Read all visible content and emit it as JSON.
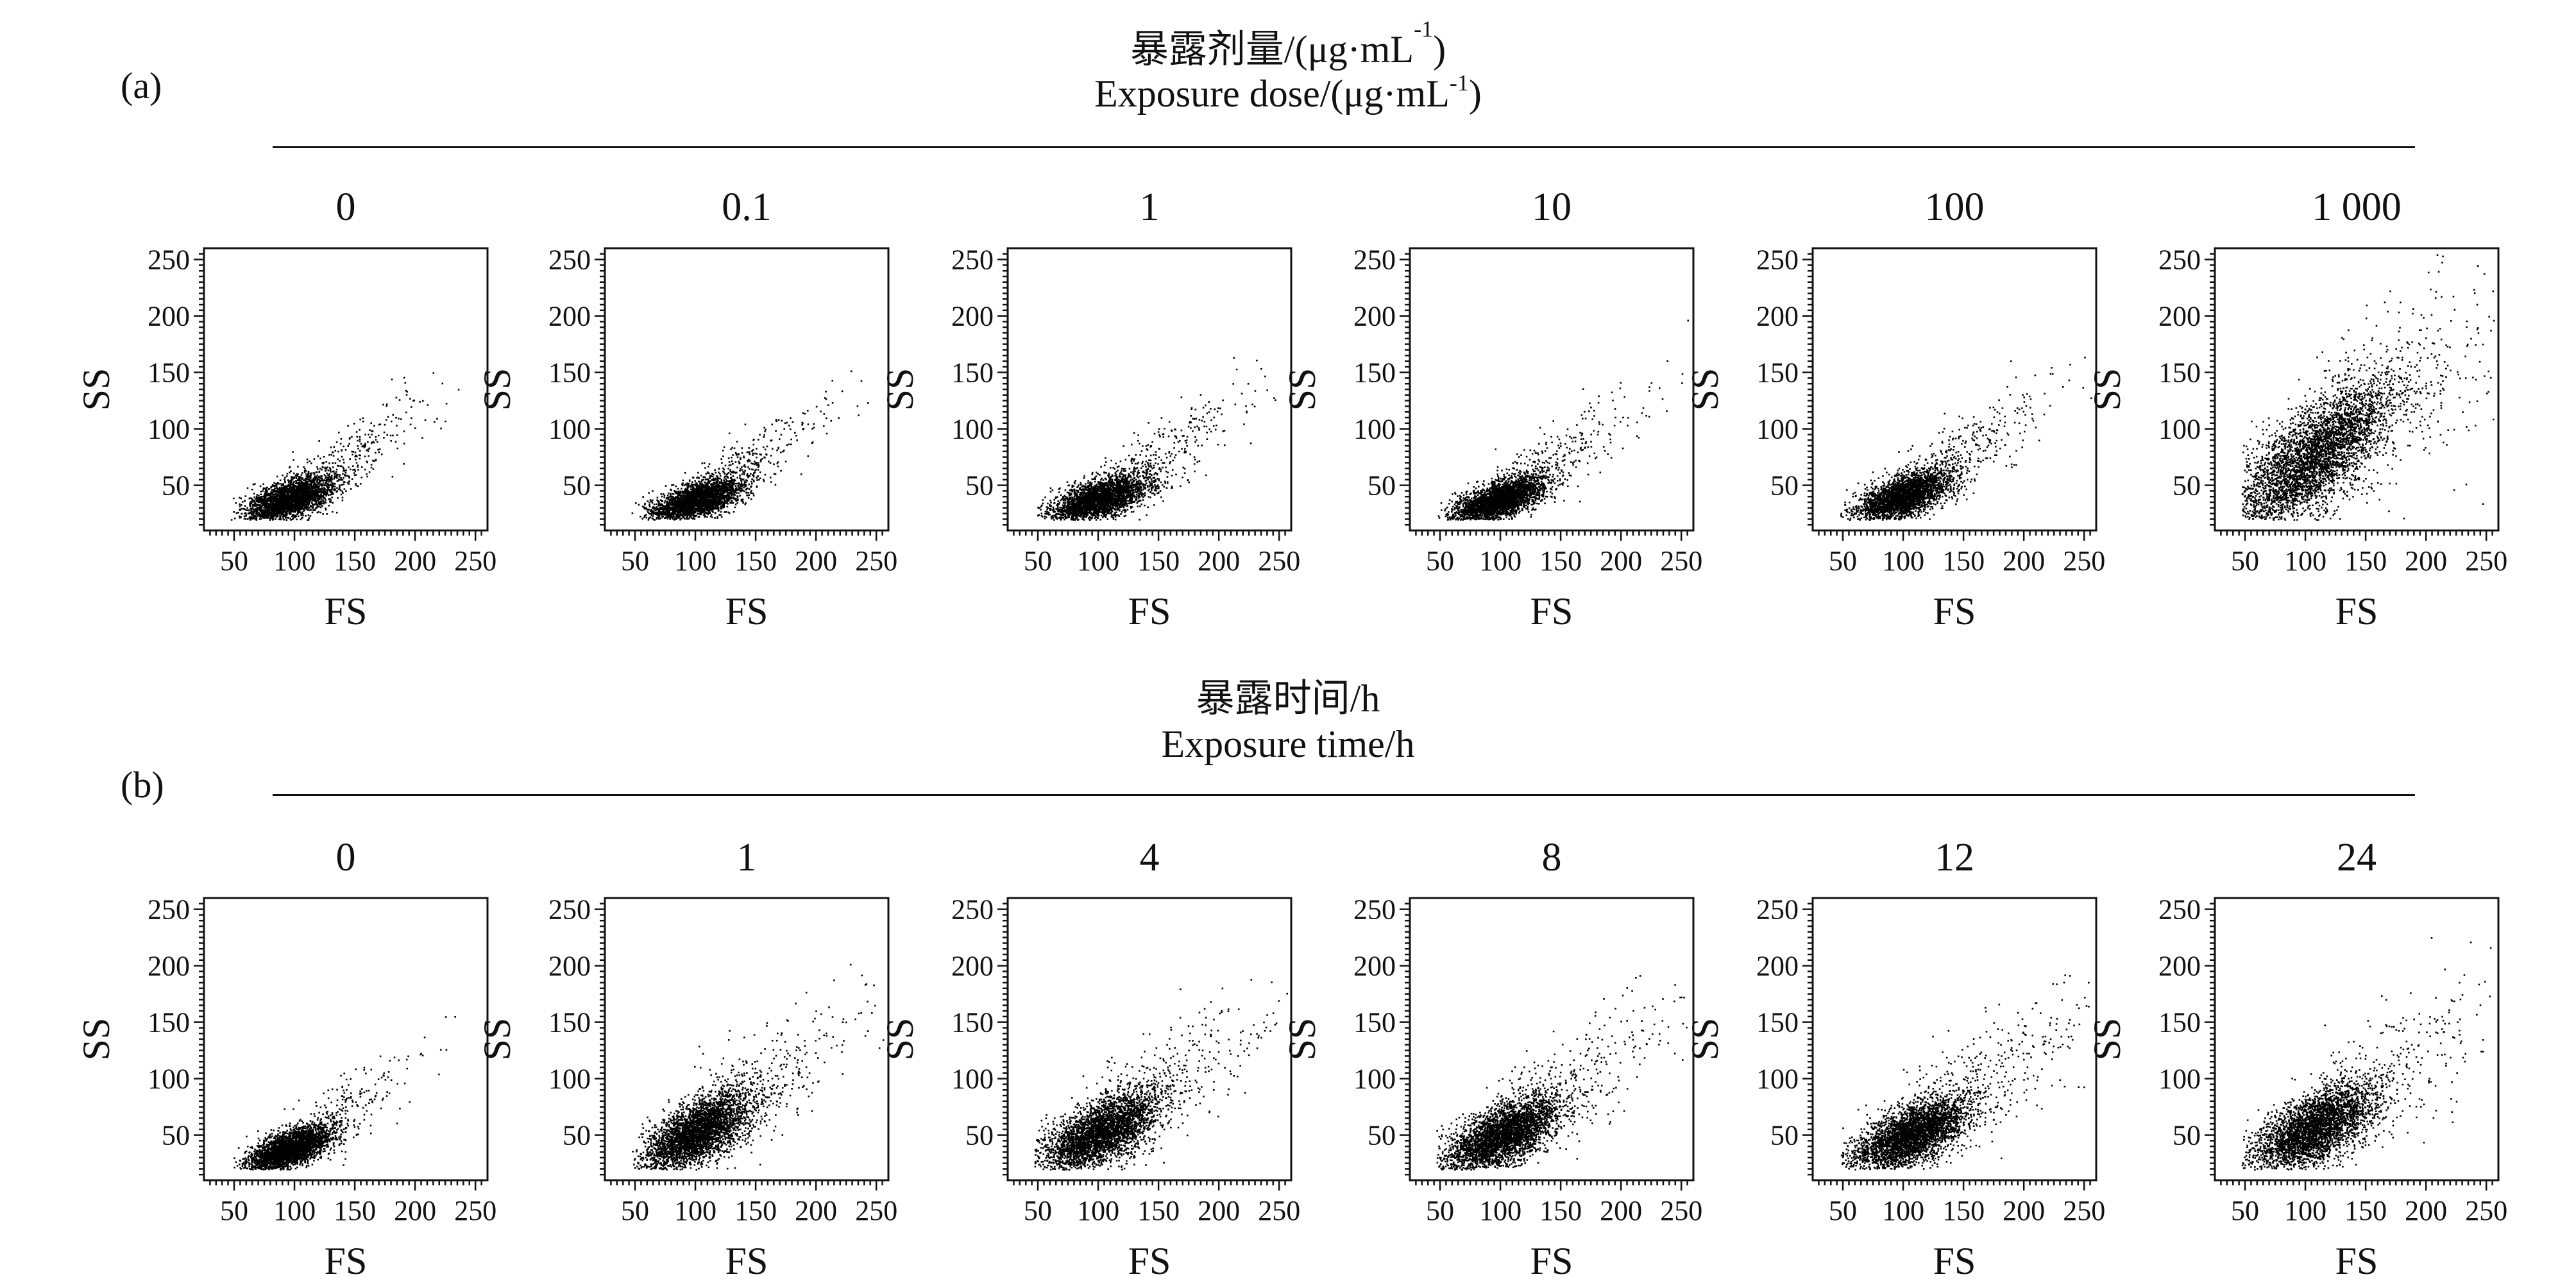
{
  "rowA": {
    "letter": "(a)",
    "title_cn_main": "暴露剂量/(μg·mL",
    "title_cn_sup": "-1",
    "title_cn_end": ")",
    "title_en_main": "Exposure dose/(μg·mL",
    "title_en_sup": "-1",
    "title_en_end": ")",
    "conditions": [
      "0",
      "0.1",
      "1",
      "10",
      "100",
      "1 000"
    ]
  },
  "rowB": {
    "letter": "(b)",
    "title_cn": "暴露时间/h",
    "title_en": "Exposure time/h",
    "conditions": [
      "0",
      "1",
      "4",
      "8",
      "12",
      "24"
    ]
  },
  "chart_data": [
    {
      "type": "scatter",
      "panel": "a-0",
      "xlabel": "FS",
      "ylabel": "SS",
      "xlim": [
        25,
        260
      ],
      "ylim": [
        10,
        260
      ],
      "xticks": [
        50,
        100,
        150,
        200,
        250
      ],
      "yticks": [
        50,
        100,
        150,
        200,
        250
      ],
      "cluster": {
        "center": [
          95,
          38
        ],
        "spread": [
          18,
          10
        ],
        "corr": 0.6,
        "n": 3200,
        "tail": 0.12
      }
    },
    {
      "type": "scatter",
      "panel": "a-0.1",
      "xlabel": "FS",
      "ylabel": "SS",
      "xlim": [
        25,
        260
      ],
      "ylim": [
        10,
        260
      ],
      "xticks": [
        50,
        100,
        150,
        200,
        250
      ],
      "yticks": [
        50,
        100,
        150,
        200,
        250
      ],
      "cluster": {
        "center": [
          100,
          37
        ],
        "spread": [
          18,
          9
        ],
        "corr": 0.6,
        "n": 3200,
        "tail": 0.12
      }
    },
    {
      "type": "scatter",
      "panel": "a-1",
      "xlabel": "FS",
      "ylabel": "SS",
      "xlim": [
        25,
        260
      ],
      "ylim": [
        10,
        260
      ],
      "xticks": [
        50,
        100,
        150,
        200,
        250
      ],
      "yticks": [
        50,
        100,
        150,
        200,
        250
      ],
      "cluster": {
        "center": [
          100,
          38
        ],
        "spread": [
          20,
          10
        ],
        "corr": 0.6,
        "n": 3200,
        "tail": 0.12
      }
    },
    {
      "type": "scatter",
      "panel": "a-10",
      "xlabel": "FS",
      "ylabel": "SS",
      "xlim": [
        25,
        260
      ],
      "ylim": [
        10,
        260
      ],
      "xticks": [
        50,
        100,
        150,
        200,
        250
      ],
      "yticks": [
        50,
        100,
        150,
        200,
        250
      ],
      "cluster": {
        "center": [
          97,
          37
        ],
        "spread": [
          18,
          10
        ],
        "corr": 0.6,
        "n": 3200,
        "tail": 0.13
      }
    },
    {
      "type": "scatter",
      "panel": "a-100",
      "xlabel": "FS",
      "ylabel": "SS",
      "xlim": [
        25,
        260
      ],
      "ylim": [
        10,
        260
      ],
      "xticks": [
        50,
        100,
        150,
        200,
        250
      ],
      "yticks": [
        50,
        100,
        150,
        200,
        250
      ],
      "cluster": {
        "center": [
          98,
          40
        ],
        "spread": [
          19,
          11
        ],
        "corr": 0.6,
        "n": 3200,
        "tail": 0.15
      }
    },
    {
      "type": "scatter",
      "panel": "a-1000",
      "xlabel": "FS",
      "ylabel": "SS",
      "xlim": [
        25,
        260
      ],
      "ylim": [
        10,
        260
      ],
      "xticks": [
        50,
        100,
        150,
        200,
        250
      ],
      "yticks": [
        50,
        100,
        150,
        200,
        250
      ],
      "cluster": {
        "center": [
          105,
          75
        ],
        "spread": [
          35,
          35
        ],
        "corr": 0.75,
        "n": 4500,
        "tail": 0.1
      }
    },
    {
      "type": "scatter",
      "panel": "b-0",
      "xlabel": "FS",
      "ylabel": "SS",
      "xlim": [
        25,
        260
      ],
      "ylim": [
        10,
        260
      ],
      "xticks": [
        50,
        100,
        150,
        200,
        250
      ],
      "yticks": [
        50,
        100,
        150,
        200,
        250
      ],
      "cluster": {
        "center": [
          95,
          38
        ],
        "spread": [
          17,
          10
        ],
        "corr": 0.6,
        "n": 3200,
        "tail": 0.1
      }
    },
    {
      "type": "scatter",
      "panel": "b-1",
      "xlabel": "FS",
      "ylabel": "SS",
      "xlim": [
        25,
        260
      ],
      "ylim": [
        10,
        260
      ],
      "xticks": [
        50,
        100,
        150,
        200,
        250
      ],
      "yticks": [
        50,
        100,
        150,
        200,
        250
      ],
      "cluster": {
        "center": [
          100,
          52
        ],
        "spread": [
          22,
          18
        ],
        "corr": 0.65,
        "n": 3800,
        "tail": 0.12
      }
    },
    {
      "type": "scatter",
      "panel": "b-4",
      "xlabel": "FS",
      "ylabel": "SS",
      "xlim": [
        25,
        260
      ],
      "ylim": [
        10,
        260
      ],
      "xticks": [
        50,
        100,
        150,
        200,
        250
      ],
      "yticks": [
        50,
        100,
        150,
        200,
        250
      ],
      "cluster": {
        "center": [
          100,
          52
        ],
        "spread": [
          24,
          18
        ],
        "corr": 0.65,
        "n": 3800,
        "tail": 0.12
      }
    },
    {
      "type": "scatter",
      "panel": "b-8",
      "xlabel": "FS",
      "ylabel": "SS",
      "xlim": [
        25,
        260
      ],
      "ylim": [
        10,
        260
      ],
      "xticks": [
        50,
        100,
        150,
        200,
        250
      ],
      "yticks": [
        50,
        100,
        150,
        200,
        250
      ],
      "cluster": {
        "center": [
          100,
          50
        ],
        "spread": [
          24,
          17
        ],
        "corr": 0.65,
        "n": 3800,
        "tail": 0.12
      }
    },
    {
      "type": "scatter",
      "panel": "b-12",
      "xlabel": "FS",
      "ylabel": "SS",
      "xlim": [
        25,
        260
      ],
      "ylim": [
        10,
        260
      ],
      "xticks": [
        50,
        100,
        150,
        200,
        250
      ],
      "yticks": [
        50,
        100,
        150,
        200,
        250
      ],
      "cluster": {
        "center": [
          105,
          50
        ],
        "spread": [
          25,
          17
        ],
        "corr": 0.65,
        "n": 3800,
        "tail": 0.12
      }
    },
    {
      "type": "scatter",
      "panel": "b-24",
      "xlabel": "FS",
      "ylabel": "SS",
      "xlim": [
        25,
        260
      ],
      "ylim": [
        10,
        260
      ],
      "xticks": [
        50,
        100,
        150,
        200,
        250
      ],
      "yticks": [
        50,
        100,
        150,
        200,
        250
      ],
      "cluster": {
        "center": [
          105,
          55
        ],
        "spread": [
          25,
          20
        ],
        "corr": 0.65,
        "n": 3800,
        "tail": 0.12
      }
    }
  ]
}
